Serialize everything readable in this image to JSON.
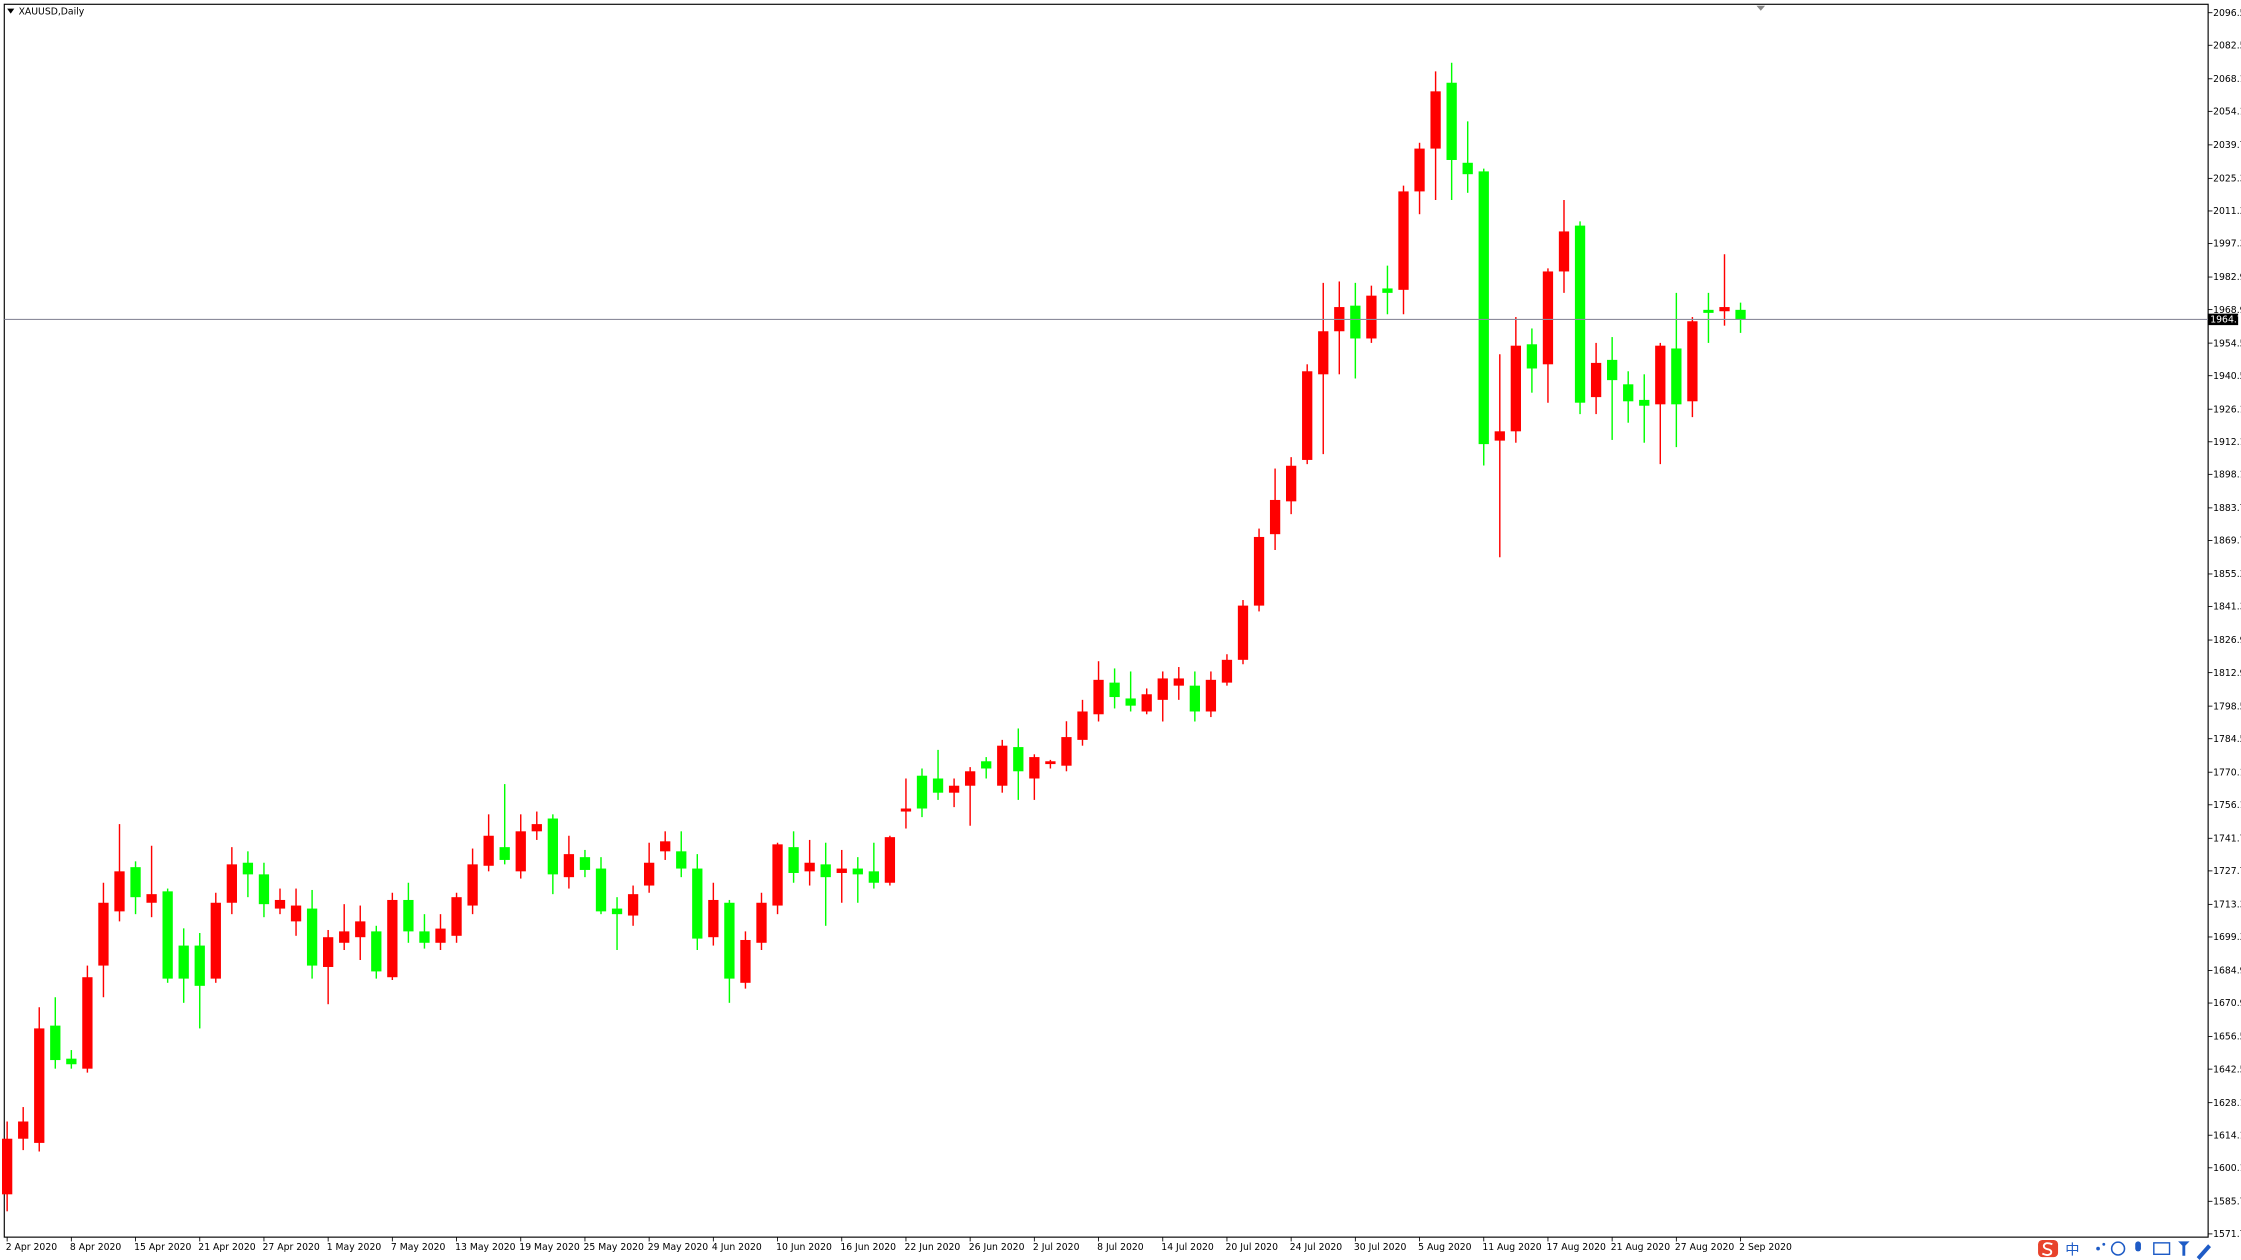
{
  "chart_data": {
    "type": "candlestick",
    "title": "XAUUSD,Daily",
    "up_color": "#ff0000",
    "down_color": "#00ff00",
    "price_line_color": "#8c8c9c",
    "current_price": 1964.7,
    "ylim": [
      1570.3,
      2099.5
    ],
    "yticks": [
      2096.5,
      2082.5,
      2068.1,
      2054.1,
      2039.7,
      2025.3,
      2011.3,
      1997.3,
      1982.9,
      1968.9,
      1954.5,
      1940.5,
      1926.1,
      1912.1,
      1898.1,
      1883.7,
      1869.7,
      1855.3,
      1841.3,
      1826.9,
      1812.9,
      1798.5,
      1784.5,
      1770.1,
      1756.1,
      1741.7,
      1727.7,
      1713.3,
      1699.3,
      1684.9,
      1670.9,
      1656.5,
      1642.5,
      1628.1,
      1614.1,
      1600.1,
      1585.7,
      1571.7
    ],
    "categories": [
      "2 Apr 2020",
      null,
      null,
      null,
      "8 Apr 2020",
      null,
      null,
      null,
      "15 Apr 2020",
      null,
      null,
      null,
      "21 Apr 2020",
      null,
      null,
      null,
      "27 Apr 2020",
      null,
      null,
      null,
      "1 May 2020",
      null,
      null,
      null,
      "7 May 2020",
      null,
      null,
      null,
      "13 May 2020",
      null,
      null,
      null,
      "19 May 2020",
      null,
      null,
      null,
      "25 May 2020",
      null,
      null,
      null,
      "29 May 2020",
      null,
      null,
      null,
      "4 Jun 2020",
      null,
      null,
      null,
      "10 Jun 2020",
      null,
      null,
      null,
      "16 Jun 2020",
      null,
      null,
      null,
      "22 Jun 2020",
      null,
      null,
      null,
      "26 Jun 2020",
      null,
      null,
      null,
      "2 Jul 2020",
      null,
      null,
      null,
      "8 Jul 2020",
      null,
      null,
      null,
      "14 Jul 2020",
      null,
      null,
      null,
      "20 Jul 2020",
      null,
      null,
      null,
      "24 Jul 2020",
      null,
      null,
      null,
      "30 Jul 2020",
      null,
      null,
      null,
      "5 Aug 2020",
      null,
      null,
      null,
      "11 Aug 2020",
      null,
      null,
      null,
      "17 Aug 2020",
      null,
      null,
      null,
      "21 Aug 2020",
      null,
      null,
      null,
      "27 Aug 2020",
      null,
      null,
      null,
      "2 Sep 2020"
    ],
    "open": [
      1588.7,
      1612.6,
      1610.8,
      1661.2,
      1647.0,
      1642.7,
      1687.0,
      1710.3,
      1729.3,
      1714.0,
      1718.9,
      1695.6,
      1695.6,
      1681.4,
      1714.0,
      1731.2,
      1726.2,
      1711.5,
      1706.0,
      1711.5,
      1686.4,
      1696.8,
      1699.2,
      1701.7,
      1682.0,
      1715.2,
      1701.7,
      1696.8,
      1699.8,
      1712.8,
      1729.9,
      1737.9,
      1727.5,
      1744.7,
      1750.2,
      1725.0,
      1733.6,
      1728.7,
      1711.5,
      1708.5,
      1721.4,
      1736.1,
      1736.1,
      1728.7,
      1699.2,
      1714.0,
      1679.6,
      1696.8,
      1712.8,
      1737.9,
      1727.5,
      1730.5,
      1726.8,
      1728.7,
      1727.5,
      1722.6,
      1753.2,
      1768.6,
      1767.4,
      1761.3,
      1764.3,
      1774.8,
      1764.3,
      1780.9,
      1767.4,
      1773.6,
      1772.9,
      1784.0,
      1795.0,
      1808.6,
      1801.8,
      1796.2,
      1801.2,
      1807.3,
      1807.3,
      1796.2,
      1808.6,
      1818.4,
      1841.7,
      1872.4,
      1886.5,
      1904.3,
      1941.1,
      1959.6,
      1970.6,
      1956.5,
      1978.0,
      1977.4,
      2019.7,
      2038.1,
      2066.4,
      2032.0,
      2028.3,
      1912.6,
      1916.6,
      1954.0,
      1945.4,
      1985.3,
      2005.0,
      1931.3,
      1947.3,
      1936.8,
      1930.1,
      1928.2,
      1952.2,
      1929.5,
      1968.8,
      1968.2,
      1968.8
    ],
    "high": [
      1620.0,
      1626.2,
      1669.1,
      1673.4,
      1650.7,
      1687.0,
      1722.6,
      1747.8,
      1731.8,
      1738.5,
      1720.1,
      1703.0,
      1701.0,
      1718.3,
      1737.9,
      1736.1,
      1731.2,
      1720.1,
      1720.1,
      1719.5,
      1702.3,
      1713.4,
      1712.8,
      1704.1,
      1718.3,
      1722.6,
      1709.1,
      1709.1,
      1718.3,
      1737.3,
      1752.0,
      1765.0,
      1752.0,
      1753.2,
      1752.0,
      1742.8,
      1736.7,
      1733.6,
      1716.4,
      1721.4,
      1739.8,
      1744.7,
      1744.7,
      1734.9,
      1722.6,
      1715.2,
      1701.7,
      1718.3,
      1739.8,
      1744.7,
      1741.0,
      1739.8,
      1736.7,
      1733.6,
      1739.8,
      1742.8,
      1767.4,
      1771.7,
      1779.7,
      1767.4,
      1772.3,
      1776.6,
      1784.0,
      1788.9,
      1777.8,
      1775.4,
      1792.0,
      1801.2,
      1817.8,
      1814.7,
      1813.4,
      1806.1,
      1813.4,
      1815.3,
      1813.4,
      1813.4,
      1820.8,
      1844.1,
      1874.8,
      1900.6,
      1905.5,
      1945.4,
      1980.4,
      1981.0,
      1980.4,
      1979.2,
      1987.8,
      2022.2,
      2040.6,
      2071.3,
      2075.0,
      2049.8,
      2029.5,
      1949.7,
      1965.7,
      1960.8,
      1986.6,
      2016.0,
      2006.8,
      1954.6,
      1957.1,
      1942.4,
      1941.1,
      1954.6,
      1976.1,
      1965.7,
      1976.1,
      1992.7,
      1971.9
    ],
    "low": [
      1581.4,
      1607.7,
      1607.1,
      1642.7,
      1642.7,
      1641.0,
      1673.4,
      1706.0,
      1709.1,
      1707.8,
      1679.6,
      1671.0,
      1660.0,
      1679.6,
      1709.1,
      1716.4,
      1707.8,
      1709.1,
      1699.8,
      1681.4,
      1670.4,
      1693.7,
      1689.4,
      1681.4,
      1680.8,
      1696.8,
      1694.3,
      1693.7,
      1696.8,
      1709.1,
      1727.5,
      1730.5,
      1724.4,
      1741.0,
      1717.7,
      1720.1,
      1725.0,
      1709.1,
      1693.7,
      1704.1,
      1718.3,
      1732.4,
      1725.0,
      1693.7,
      1695.6,
      1671.0,
      1677.1,
      1693.7,
      1709.1,
      1722.6,
      1721.4,
      1704.1,
      1714.0,
      1714.0,
      1720.1,
      1721.4,
      1745.9,
      1750.8,
      1758.2,
      1755.1,
      1747.1,
      1767.4,
      1761.3,
      1758.2,
      1758.2,
      1771.7,
      1770.5,
      1781.5,
      1791.9,
      1797.5,
      1796.2,
      1795.0,
      1791.9,
      1801.2,
      1791.9,
      1793.8,
      1807.3,
      1816.5,
      1839.2,
      1865.6,
      1881.0,
      1902.5,
      1906.8,
      1941.1,
      1939.3,
      1954.6,
      1966.9,
      1966.9,
      2009.9,
      2016.0,
      2016.0,
      2019.1,
      1901.9,
      1862.5,
      1911.7,
      1933.2,
      1928.9,
      1976.1,
      1924.0,
      1924.0,
      1912.9,
      1920.3,
      1911.7,
      1902.5,
      1909.8,
      1922.7,
      1954.6,
      1962.0,
      1958.9
    ],
    "close": [
      1612.6,
      1620.0,
      1660.0,
      1646.4,
      1644.6,
      1682.0,
      1714.0,
      1727.5,
      1716.4,
      1717.7,
      1681.4,
      1681.4,
      1678.3,
      1714.0,
      1730.5,
      1726.2,
      1713.4,
      1715.2,
      1712.8,
      1687.0,
      1699.2,
      1701.7,
      1706.0,
      1684.5,
      1715.2,
      1701.7,
      1696.8,
      1702.9,
      1716.4,
      1730.5,
      1742.8,
      1732.4,
      1744.7,
      1747.8,
      1726.2,
      1734.9,
      1728.1,
      1710.3,
      1709.1,
      1717.7,
      1731.2,
      1740.4,
      1728.7,
      1698.6,
      1715.2,
      1681.4,
      1698.0,
      1714.0,
      1739.1,
      1726.8,
      1731.2,
      1725.0,
      1728.7,
      1726.2,
      1722.6,
      1742.2,
      1754.5,
      1754.5,
      1761.3,
      1764.3,
      1770.5,
      1771.7,
      1781.5,
      1770.5,
      1776.6,
      1774.8,
      1785.2,
      1796.2,
      1809.8,
      1802.4,
      1798.7,
      1803.6,
      1810.4,
      1810.4,
      1796.2,
      1809.8,
      1818.4,
      1841.7,
      1871.2,
      1887.1,
      1901.8,
      1942.4,
      1959.6,
      1970.0,
      1956.5,
      1974.9,
      1976.1,
      2019.7,
      2038.1,
      2062.7,
      2033.2,
      2027.1,
      1911.1,
      1916.6,
      1953.4,
      1943.6,
      1985.3,
      2002.5,
      1928.9,
      1946.0,
      1938.6,
      1929.5,
      1927.6,
      1953.4,
      1928.2,
      1963.9,
      1967.5,
      1970.0,
      1964.5
    ]
  },
  "taskbar": {
    "ime_mode": "中"
  }
}
